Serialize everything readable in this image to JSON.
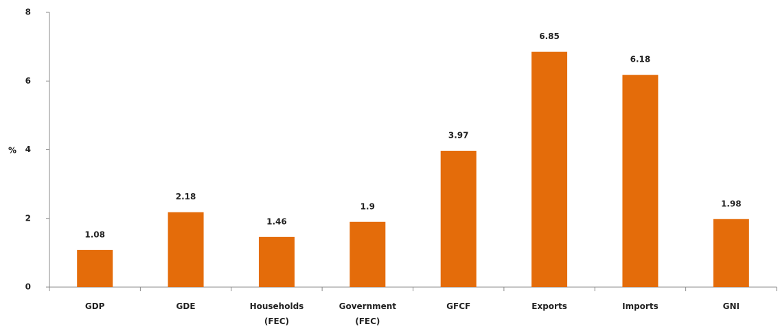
{
  "chart_data": {
    "type": "bar",
    "ylabel": "%",
    "categories": [
      "GDP",
      "GDE",
      "Households (FEC)",
      "Government (FEC)",
      "GFCF",
      "Exports",
      "Imports",
      "GNI"
    ],
    "values": [
      1.08,
      2.18,
      1.46,
      1.9,
      3.97,
      6.85,
      6.18,
      1.98
    ],
    "color": "#e46c0a",
    "ylim": [
      0,
      8
    ],
    "yticks": [
      0,
      2,
      4,
      6,
      8
    ],
    "grid": false
  }
}
